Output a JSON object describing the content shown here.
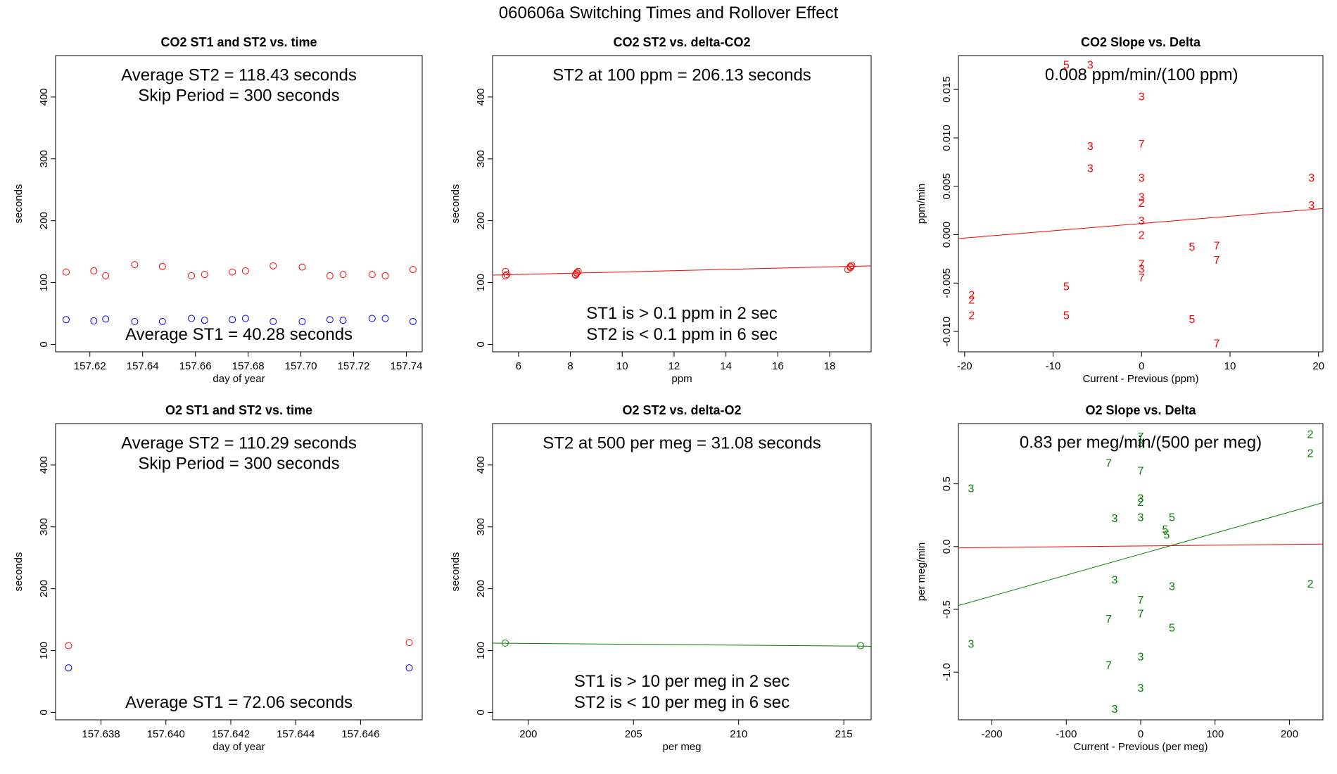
{
  "figure": {
    "title": "060606a   Switching Times and Rollover Effect"
  },
  "chart_data": [
    {
      "id": "co2_time",
      "type": "scatter",
      "title": "CO2 ST1 and ST2 vs. time",
      "xlabel": "day of year",
      "ylabel": "seconds",
      "xlim": [
        157.607,
        157.746
      ],
      "ylim": [
        -12,
        467
      ],
      "xticks": [
        "157.62",
        "157.64",
        "157.66",
        "157.68",
        "157.70",
        "157.72",
        "157.74"
      ],
      "yticks": [
        "0",
        "100",
        "200",
        "300",
        "400"
      ],
      "annotations": [
        {
          "text": "Average ST2 =  118.43  seconds",
          "x": 157.6765,
          "y": 435
        },
        {
          "text": "Skip Period =  300  seconds",
          "x": 157.6765,
          "y": 402
        },
        {
          "text": "Average ST1 =  40.28  seconds",
          "x": 157.6765,
          "y": 16
        }
      ],
      "series": [
        {
          "marker": "circle",
          "color": "#ff0000",
          "x": [
            157.611,
            157.6215,
            157.626,
            157.637,
            157.6475,
            157.6585,
            157.6635,
            157.674,
            157.679,
            157.6895,
            157.7005,
            157.711,
            157.716,
            157.727,
            157.732,
            157.7425
          ],
          "y": [
            117,
            119,
            111,
            129,
            126,
            111,
            113,
            117,
            119,
            127,
            125,
            111,
            113,
            113,
            111,
            121
          ]
        },
        {
          "marker": "circle",
          "color": "#0000ff",
          "x": [
            157.611,
            157.6215,
            157.626,
            157.637,
            157.6475,
            157.6585,
            157.6635,
            157.674,
            157.679,
            157.6895,
            157.7005,
            157.711,
            157.716,
            157.727,
            157.732,
            157.7425
          ],
          "y": [
            40,
            38,
            41,
            37,
            37,
            42,
            39,
            40,
            42,
            37,
            37,
            40,
            39,
            42,
            42,
            37
          ]
        }
      ]
    },
    {
      "id": "co2_delta",
      "type": "scatter",
      "title": "CO2 ST2 vs. delta-CO2",
      "xlabel": "ppm",
      "ylabel": "seconds",
      "xlim": [
        5.0,
        19.6
      ],
      "ylim": [
        -12,
        467
      ],
      "xticks": [
        "6",
        "8",
        "10",
        "12",
        "14",
        "16",
        "18"
      ],
      "yticks": [
        "0",
        "100",
        "200",
        "300",
        "400"
      ],
      "annotations": [
        {
          "text": "ST2 at 100 ppm =  206.13  seconds",
          "x": 12.3,
          "y": 435
        },
        {
          "text": "ST1 is > 0.1 ppm in 2 sec",
          "x": 12.3,
          "y": 50
        },
        {
          "text": "ST2 is < 0.1 ppm in 6 sec",
          "x": 12.3,
          "y": 16
        }
      ],
      "series": [
        {
          "marker": "circle",
          "color": "#ff0000",
          "x": [
            5.5,
            5.55,
            5.5,
            8.2,
            8.25,
            8.3,
            8.25,
            8.2,
            18.7,
            18.8,
            18.85,
            18.8
          ],
          "y": [
            111,
            113,
            118,
            113,
            115,
            118,
            116,
            112,
            121,
            124,
            128,
            126
          ]
        }
      ],
      "lines": [
        {
          "color": "#ff0000",
          "x": [
            5.0,
            19.6
          ],
          "y": [
            112,
            127
          ]
        }
      ]
    },
    {
      "id": "co2_slope",
      "type": "scatter",
      "title": "CO2 Slope vs. Delta",
      "xlabel": "Current - Previous (ppm)",
      "ylabel": "ppm/min",
      "xlim": [
        -20.7,
        20.5
      ],
      "ylim": [
        -0.0121,
        0.0185
      ],
      "xticks": [
        "-20",
        "-10",
        "0",
        "10",
        "20"
      ],
      "yticks": [
        "-0.010",
        "-0.005",
        "0.000",
        "0.005",
        "0.010",
        "0.015"
      ],
      "annotations": [
        {
          "text": "0.008  ppm/min/(100 ppm)",
          "x": 0,
          "y": 0.0165
        }
      ],
      "points": [
        {
          "label": "5",
          "x": -8.5,
          "y": 0.0175
        },
        {
          "label": "3",
          "x": -5.8,
          "y": 0.0175
        },
        {
          "label": "3",
          "x": 0,
          "y": 0.0142
        },
        {
          "label": "3",
          "x": -5.8,
          "y": 0.0091
        },
        {
          "label": "7",
          "x": 0,
          "y": 0.0093
        },
        {
          "label": "3",
          "x": -5.8,
          "y": 0.0068
        },
        {
          "label": "3",
          "x": 0,
          "y": 0.0058
        },
        {
          "label": "3",
          "x": 19.2,
          "y": 0.0058
        },
        {
          "label": "3",
          "x": 0,
          "y": 0.0038
        },
        {
          "label": "2",
          "x": 0,
          "y": 0.0032
        },
        {
          "label": "3",
          "x": 19.2,
          "y": 0.003
        },
        {
          "label": "3",
          "x": 0,
          "y": 0.0014
        },
        {
          "label": "2",
          "x": 0,
          "y": -0.0001
        },
        {
          "label": "5",
          "x": 5.7,
          "y": -0.0013
        },
        {
          "label": "7",
          "x": 8.5,
          "y": -0.0012
        },
        {
          "label": "7",
          "x": 8.5,
          "y": -0.0027
        },
        {
          "label": "7",
          "x": 0,
          "y": -0.0031
        },
        {
          "label": "3",
          "x": 0,
          "y": -0.0036
        },
        {
          "label": "7",
          "x": 0,
          "y": -0.0045
        },
        {
          "label": "5",
          "x": -8.5,
          "y": -0.0054
        },
        {
          "label": "2",
          "x": -19.2,
          "y": -0.0063
        },
        {
          "label": "2",
          "x": -19.2,
          "y": -0.0068
        },
        {
          "label": "2",
          "x": -19.2,
          "y": -0.0084
        },
        {
          "label": "5",
          "x": -8.5,
          "y": -0.0084
        },
        {
          "label": "5",
          "x": 5.7,
          "y": -0.0088
        },
        {
          "label": "7",
          "x": 8.5,
          "y": -0.0113
        }
      ],
      "point_color": "#ff0000",
      "lines": [
        {
          "color": "#ff0000",
          "x": [
            -20.7,
            20.5
          ],
          "y": [
            -0.0004,
            0.0027
          ]
        }
      ]
    },
    {
      "id": "o2_time",
      "type": "scatter",
      "title": "O2 ST1 and ST2 vs. time",
      "xlabel": "day of year",
      "ylabel": "seconds",
      "xlim": [
        157.6366,
        157.6479
      ],
      "ylim": [
        -12,
        467
      ],
      "xticks": [
        "157.638",
        "157.640",
        "157.642",
        "157.644",
        "157.646"
      ],
      "yticks": [
        "0",
        "100",
        "200",
        "300",
        "400"
      ],
      "annotations": [
        {
          "text": "Average ST2 =  110.29  seconds",
          "x": 157.64225,
          "y": 435
        },
        {
          "text": "Skip Period =  300  seconds",
          "x": 157.64225,
          "y": 402
        },
        {
          "text": "Average ST1 =  72.06  seconds",
          "x": 157.64225,
          "y": 16
        }
      ],
      "series": [
        {
          "marker": "circle",
          "color": "#ff0000",
          "x": [
            157.637,
            157.6475
          ],
          "y": [
            108,
            113
          ]
        },
        {
          "marker": "circle",
          "color": "#0000ff",
          "x": [
            157.637,
            157.6475
          ],
          "y": [
            72,
            72
          ]
        }
      ]
    },
    {
      "id": "o2_delta",
      "type": "scatter",
      "title": "O2 ST2 vs. delta-O2",
      "xlabel": "per meg",
      "ylabel": "seconds",
      "xlim": [
        198.3,
        216.3
      ],
      "ylim": [
        -12,
        467
      ],
      "xticks": [
        "200",
        "205",
        "210",
        "215"
      ],
      "yticks": [
        "0",
        "100",
        "200",
        "300",
        "400"
      ],
      "annotations": [
        {
          "text": "ST2 at 500 per meg =  31.08  seconds",
          "x": 207.3,
          "y": 435
        },
        {
          "text": "ST1 is > 10 per meg in 2 sec",
          "x": 207.3,
          "y": 50
        },
        {
          "text": "ST2 is < 10 per meg in 6 sec",
          "x": 207.3,
          "y": 16
        }
      ],
      "series": [
        {
          "marker": "circle",
          "color": "#008000",
          "x": [
            198.9,
            215.8
          ],
          "y": [
            112,
            108
          ]
        }
      ],
      "lines": [
        {
          "color": "#008000",
          "x": [
            198.3,
            216.3
          ],
          "y": [
            112,
            107
          ]
        }
      ]
    },
    {
      "id": "o2_slope",
      "type": "scatter",
      "title": "O2 Slope vs. Delta",
      "xlabel": "Current - Previous (per meg)",
      "ylabel": "per meg/min",
      "xlim": [
        -245,
        245
      ],
      "ylim": [
        -1.38,
        0.98
      ],
      "xticks": [
        "-200",
        "-100",
        "0",
        "100",
        "200"
      ],
      "yticks": [
        "-1.0",
        "-0.5",
        "0.0",
        "0.5"
      ],
      "annotations": [
        {
          "text": "0.83  per meg/min/(500 per meg)",
          "x": 0,
          "y": 0.83
        }
      ],
      "points": [
        {
          "label": "2",
          "x": 228,
          "y": 0.89
        },
        {
          "label": "7",
          "x": 0,
          "y": 0.87
        },
        {
          "label": "3",
          "x": 0,
          "y": 0.82
        },
        {
          "label": "2",
          "x": 228,
          "y": 0.74
        },
        {
          "label": "7",
          "x": -43,
          "y": 0.66
        },
        {
          "label": "7",
          "x": 0,
          "y": 0.6
        },
        {
          "label": "3",
          "x": -228,
          "y": 0.46
        },
        {
          "label": "3",
          "x": 0,
          "y": 0.38
        },
        {
          "label": "2",
          "x": 0,
          "y": 0.35
        },
        {
          "label": "3",
          "x": -35,
          "y": 0.22
        },
        {
          "label": "3",
          "x": 0,
          "y": 0.23
        },
        {
          "label": "5",
          "x": 42,
          "y": 0.23
        },
        {
          "label": "5",
          "x": 33,
          "y": 0.13
        },
        {
          "label": "5",
          "x": 35,
          "y": 0.09
        },
        {
          "label": "3",
          "x": -35,
          "y": -0.27
        },
        {
          "label": "2",
          "x": 228,
          "y": -0.3
        },
        {
          "label": "3",
          "x": 42,
          "y": -0.32
        },
        {
          "label": "7",
          "x": 0,
          "y": -0.43
        },
        {
          "label": "7",
          "x": 0,
          "y": -0.54
        },
        {
          "label": "7",
          "x": -43,
          "y": -0.58
        },
        {
          "label": "5",
          "x": 42,
          "y": -0.65
        },
        {
          "label": "3",
          "x": -228,
          "y": -0.78
        },
        {
          "label": "3",
          "x": 0,
          "y": -0.88
        },
        {
          "label": "7",
          "x": -43,
          "y": -0.95
        },
        {
          "label": "3",
          "x": 0,
          "y": -1.13
        },
        {
          "label": "3",
          "x": -35,
          "y": -1.3
        }
      ],
      "point_color": "#008000",
      "lines": [
        {
          "color": "#008000",
          "x": [
            -245,
            245
          ],
          "y": [
            -0.47,
            0.35
          ]
        },
        {
          "color": "#ff0000",
          "x": [
            -245,
            245
          ],
          "y": [
            -0.01,
            0.02
          ]
        }
      ]
    }
  ]
}
